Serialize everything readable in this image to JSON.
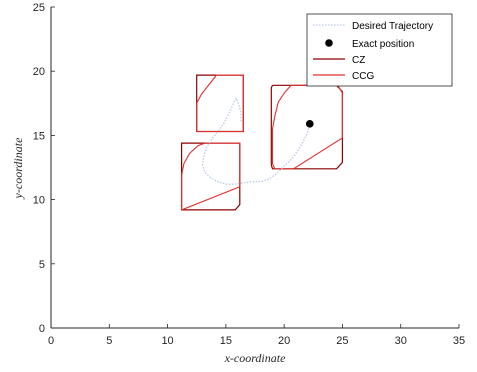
{
  "chart_data": {
    "type": "line",
    "title": "",
    "xlabel": "x-coordinate",
    "ylabel": "y-coordinate",
    "xlim": [
      0,
      35
    ],
    "ylim": [
      0,
      25
    ],
    "xticks": [
      0,
      5,
      10,
      15,
      20,
      25,
      30,
      35
    ],
    "yticks": [
      0,
      5,
      10,
      15,
      20,
      25
    ],
    "grid": false,
    "legend_position": "top-right",
    "legend": [
      {
        "label": "Desired Trajectory",
        "style": "dotted",
        "color": "#b9c8e6"
      },
      {
        "label": "Exact position",
        "style": "marker",
        "color": "#000000"
      },
      {
        "label": "CZ",
        "style": "solid",
        "color": "#8b0000"
      },
      {
        "label": "CCG",
        "style": "solid",
        "color": "#e03030"
      }
    ],
    "exact_position": {
      "x": 22.2,
      "y": 15.9
    },
    "trajectory": {
      "x": [
        16.3,
        16.3,
        16.1,
        15.9,
        15.7,
        15.5,
        15.2,
        14.8,
        14.3,
        13.8,
        13.3,
        13.1,
        13.0,
        13.2,
        13.7,
        14.3,
        15.0,
        15.7,
        16.5,
        17.3,
        18.0,
        18.7,
        19.3,
        20.0,
        20.8,
        21.5,
        22.0,
        22.2
      ],
      "y": [
        16.1,
        16.8,
        17.4,
        17.9,
        17.6,
        17.2,
        16.6,
        15.9,
        15.3,
        14.7,
        14.0,
        13.3,
        12.7,
        12.1,
        11.7,
        11.4,
        11.2,
        11.2,
        11.3,
        11.4,
        11.4,
        11.6,
        12.0,
        12.6,
        13.3,
        14.3,
        15.2,
        15.9
      ]
    },
    "sets": [
      {
        "cz": {
          "x": [
            12.5,
            16.5,
            16.5,
            12.5,
            12.5
          ],
          "y": [
            15.3,
            15.3,
            19.7,
            19.7,
            15.3
          ]
        },
        "ccg": {
          "x": [
            12.5,
            12.9,
            13.6,
            14.2,
            16.5,
            16.5,
            12.5,
            12.5
          ],
          "y": [
            17.5,
            18.2,
            19.0,
            19.7,
            19.7,
            15.3,
            15.3,
            17.5
          ]
        }
      },
      {
        "cz": {
          "x": [
            11.2,
            15.8,
            16.2,
            16.2,
            15.8,
            11.2,
            11.2
          ],
          "y": [
            9.2,
            9.2,
            9.6,
            14.4,
            14.4,
            14.4,
            9.2
          ]
        },
        "ccg": {
          "x": [
            11.2,
            11.4,
            11.9,
            12.6,
            13.2,
            16.2,
            16.2,
            11.2,
            11.2
          ],
          "y": [
            11.9,
            12.8,
            13.6,
            14.2,
            14.4,
            14.4,
            11.0,
            9.2,
            11.9
          ]
        }
      },
      {
        "cz": {
          "x": [
            19.0,
            24.5,
            25.0,
            25.0,
            24.5,
            19.0,
            18.9,
            18.9,
            19.0
          ],
          "y": [
            18.9,
            18.9,
            18.4,
            12.9,
            12.4,
            12.4,
            12.7,
            18.7,
            18.9
          ]
        },
        "ccg": {
          "x": [
            19.2,
            19.5,
            20.1,
            20.6,
            24.6,
            25.0,
            25.0,
            20.8,
            19.2,
            19.0,
            19.0,
            19.2
          ],
          "y": [
            16.5,
            17.6,
            18.4,
            18.9,
            18.9,
            18.3,
            14.8,
            12.4,
            12.4,
            12.8,
            15.5,
            16.5
          ]
        }
      }
    ]
  }
}
